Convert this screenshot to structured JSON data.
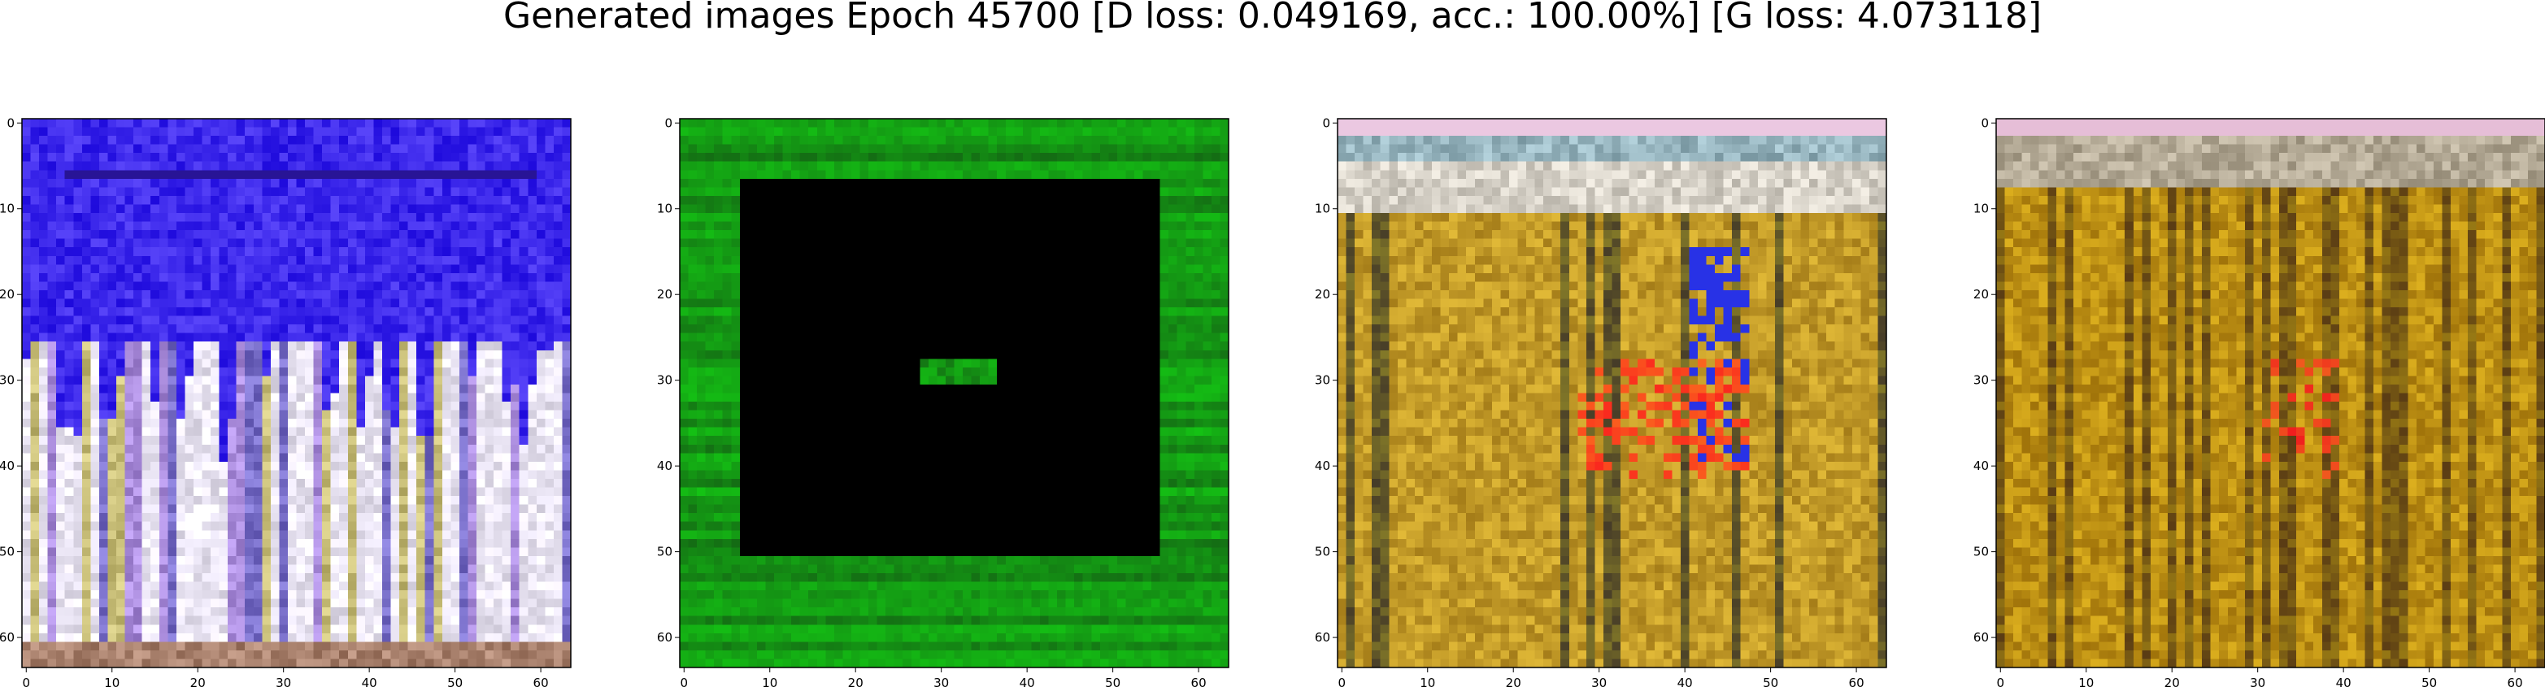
{
  "title": "Generated images Epoch 45700 [D loss: 0.049169, acc.: 100.00%] [G loss: 4.073118]",
  "axes": {
    "x_ticks": [
      "0",
      "10",
      "20",
      "30",
      "40",
      "50",
      "60"
    ],
    "y_ticks": [
      "0",
      "10",
      "20",
      "30",
      "40",
      "50",
      "60"
    ],
    "image_size": 64
  },
  "panels": [
    {
      "name": "generated-image-1",
      "palette": "blue-white"
    },
    {
      "name": "generated-image-2",
      "palette": "green-frame-black"
    },
    {
      "name": "generated-image-3",
      "palette": "ochre-colorful"
    },
    {
      "name": "generated-image-4",
      "palette": "ochre-stripes"
    }
  ],
  "colors": {
    "blue": "#3a2df0",
    "green": "#1fa81f",
    "black": "#000000",
    "ochre": "#b08a12"
  }
}
